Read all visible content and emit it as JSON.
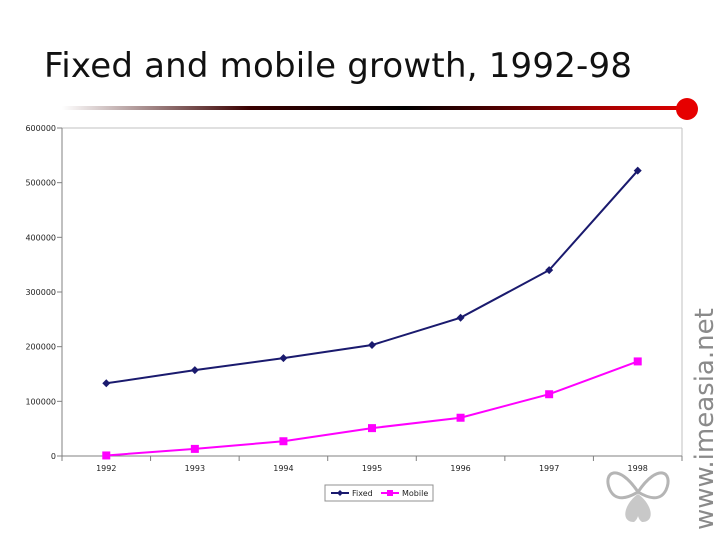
{
  "slide": {
    "title": "Fixed and mobile growth, 1992-98",
    "watermark": "www.imeasia.net"
  },
  "colors": {
    "fixed": "#1a1a6e",
    "mobile": "#ff00ff",
    "title_dot": "#e60000",
    "axis": "#808080"
  },
  "chart_data": {
    "type": "line",
    "title": "",
    "xlabel": "",
    "ylabel": "",
    "categories": [
      "1992",
      "1993",
      "1994",
      "1995",
      "1996",
      "1997",
      "1998"
    ],
    "ylim": [
      0,
      600000
    ],
    "yticks": [
      "0",
      "100000",
      "200000",
      "300000",
      "400000",
      "500000",
      "600000"
    ],
    "grid": false,
    "legend_position": "bottom",
    "series": [
      {
        "name": "Fixed",
        "marker": "diamond",
        "color": "#1a1a6e",
        "values": [
          133000,
          157000,
          179000,
          203000,
          253000,
          340000,
          522000
        ]
      },
      {
        "name": "Mobile",
        "marker": "square",
        "color": "#ff00ff",
        "values": [
          1000,
          13000,
          27000,
          51000,
          70000,
          113000,
          173000
        ]
      }
    ]
  }
}
